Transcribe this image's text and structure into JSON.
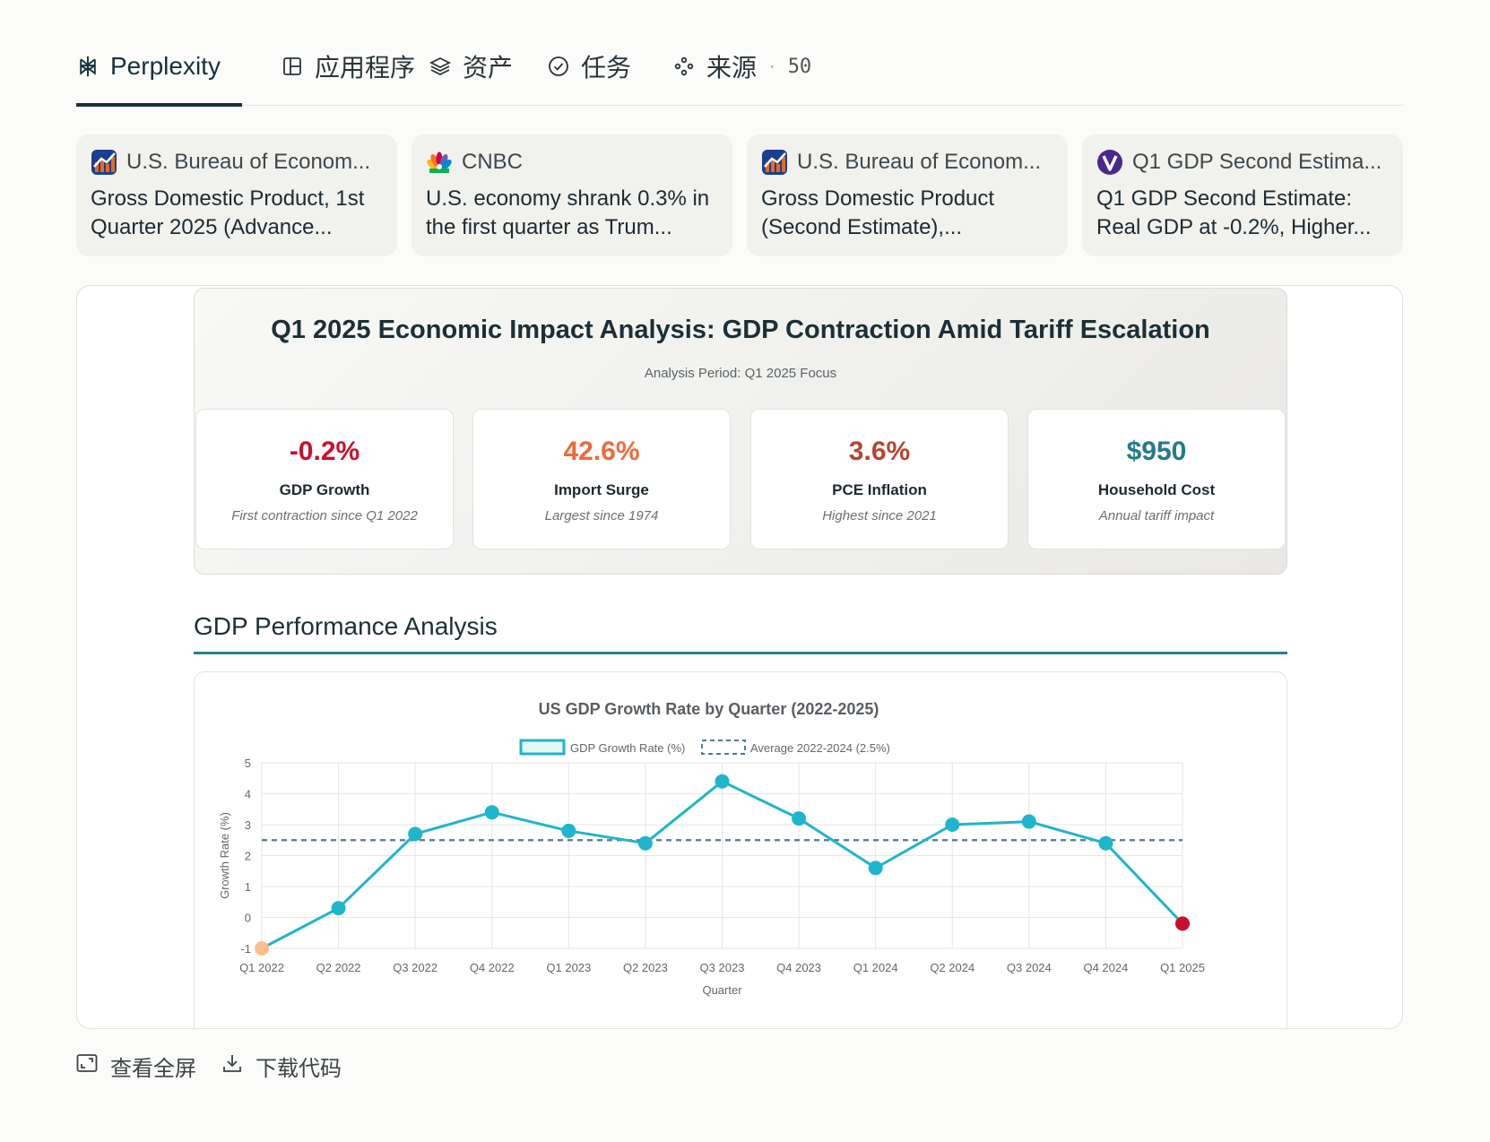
{
  "tabs": [
    {
      "label": "Perplexity",
      "icon": "perplexity-logo-icon"
    },
    {
      "label": "应用程序",
      "icon": "app-icon"
    },
    {
      "label": "资产",
      "icon": "layers-icon"
    },
    {
      "label": "任务",
      "icon": "check-circle-icon"
    },
    {
      "label": "来源",
      "icon": "sources-icon",
      "count": "50"
    }
  ],
  "sources": [
    {
      "site": "U.S. Bureau of Econom...",
      "title": "Gross Domestic Product, 1st Quarter 2025 (Advance...",
      "icon": "bea-icon"
    },
    {
      "site": "CNBC",
      "title": "U.S. economy shrank 0.3% in the first quarter as Trum...",
      "icon": "cnbc-icon"
    },
    {
      "site": "U.S. Bureau of Econom...",
      "title": "Gross Domestic Product (Second Estimate),...",
      "icon": "bea-icon"
    },
    {
      "site": "Q1 GDP Second Estima...",
      "title": "Q1 GDP Second Estimate: Real GDP at -0.2%, Higher...",
      "icon": "v-icon"
    }
  ],
  "hero": {
    "title": "Q1 2025 Economic Impact Analysis: GDP Contraction Amid Tariff Escalation",
    "subtitle": "Analysis Period: Q1 2025 Focus"
  },
  "kpis": [
    {
      "value": "-0.2%",
      "label": "GDP Growth",
      "desc": "First contraction since Q1 2022",
      "color": "#c8102e"
    },
    {
      "value": "42.6%",
      "label": "Import Surge",
      "desc": "Largest since 1974",
      "color": "#ee6a3a"
    },
    {
      "value": "3.6%",
      "label": "PCE Inflation",
      "desc": "Highest since 2021",
      "color": "#b5452f"
    },
    {
      "value": "$950",
      "label": "Household Cost",
      "desc": "Annual tariff impact",
      "color": "#237a8a"
    }
  ],
  "section": {
    "title": "GDP Performance Analysis"
  },
  "chart_data": {
    "type": "line",
    "title": "US GDP Growth Rate by Quarter (2022-2025)",
    "xlabel": "Quarter",
    "ylabel": "Growth Rate (%)",
    "ylim": [
      -1,
      5
    ],
    "yticks": [
      5,
      4,
      3,
      2,
      1,
      0,
      -1
    ],
    "grid": true,
    "legend": "top",
    "categories": [
      "Q1 2022",
      "Q2 2022",
      "Q3 2022",
      "Q4 2022",
      "Q1 2023",
      "Q2 2023",
      "Q3 2023",
      "Q4 2023",
      "Q1 2024",
      "Q2 2024",
      "Q3 2024",
      "Q4 2024",
      "Q1 2025"
    ],
    "series": [
      {
        "name": "GDP Growth Rate (%)",
        "values": [
          -1.0,
          0.3,
          2.7,
          3.4,
          2.8,
          2.4,
          4.4,
          3.2,
          1.6,
          3.0,
          3.1,
          2.4,
          -0.2
        ],
        "color": "#1fb5cc"
      },
      {
        "name": "Average 2022-2024 (2.5%)",
        "values": [
          2.5,
          2.5,
          2.5,
          2.5,
          2.5,
          2.5,
          2.5,
          2.5,
          2.5,
          2.5,
          2.5,
          2.5,
          2.5
        ],
        "color": "#4f7a93",
        "dashed": true
      }
    ],
    "point_colors": {
      "first": "#fdbf8a",
      "last": "#c8102e"
    }
  },
  "actions": [
    {
      "label": "查看全屏",
      "icon": "fullscreen-icon"
    },
    {
      "label": "下载代码",
      "icon": "download-icon"
    }
  ]
}
